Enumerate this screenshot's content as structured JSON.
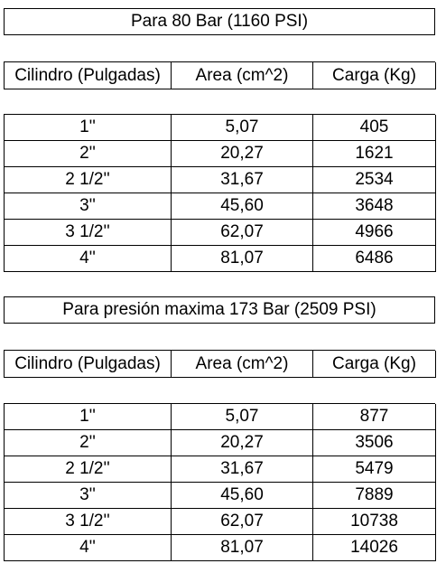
{
  "tables": [
    {
      "title": "Para 80 Bar (1160 PSI)",
      "headers": [
        "Cilindro (Pulgadas)",
        "Area (cm^2)",
        "Carga (Kg)"
      ],
      "rows": [
        [
          "1''",
          "5,07",
          "405"
        ],
        [
          "2''",
          "20,27",
          "1621"
        ],
        [
          "2 1/2''",
          "31,67",
          "2534"
        ],
        [
          "3''",
          "45,60",
          "3648"
        ],
        [
          "3 1/2''",
          "62,07",
          "4966"
        ],
        [
          "4''",
          "81,07",
          "6486"
        ]
      ]
    },
    {
      "title": "Para presión maxima 173 Bar (2509 PSI)",
      "headers": [
        "Cilindro (Pulgadas)",
        "Area (cm^2)",
        "Carga (Kg)"
      ],
      "rows": [
        [
          "1''",
          "5,07",
          "877"
        ],
        [
          "2''",
          "20,27",
          "3506"
        ],
        [
          "2 1/2''",
          "31,67",
          "5479"
        ],
        [
          "3''",
          "45,60",
          "7889"
        ],
        [
          "3 1/2''",
          "62,07",
          "10738"
        ],
        [
          "4''",
          "81,07",
          "14026"
        ]
      ]
    }
  ]
}
